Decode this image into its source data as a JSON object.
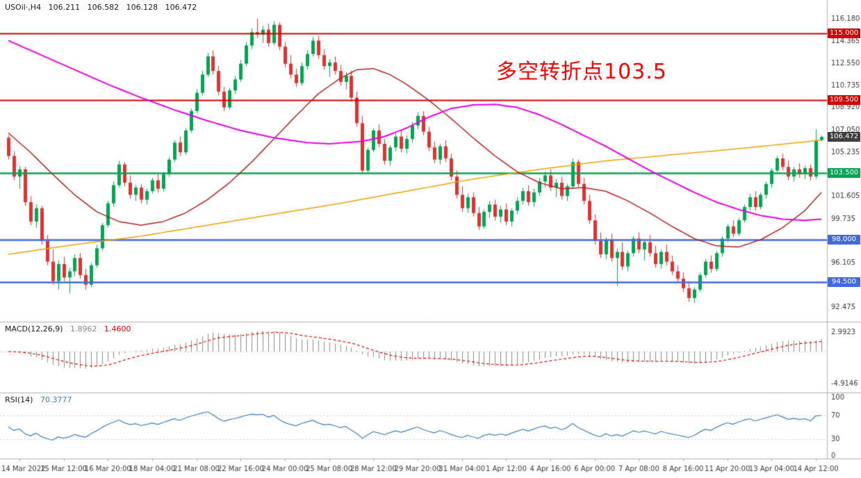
{
  "header": {
    "symbol_period": "USOil·,H4",
    "open": "106.211",
    "high": "106.582",
    "low": "106.128",
    "close": "106.472"
  },
  "annotation": {
    "text": "多空转折点103.5",
    "color": "#FF0000"
  },
  "indicators": {
    "macd": {
      "label": "MACD(12,26,9)",
      "main_value": "1.8962",
      "signal_value": "1.4600",
      "axis_max": "2.9923",
      "axis_min": "-4.9146"
    },
    "rsi": {
      "label": "RSI(14)",
      "value": "70.3777",
      "axis_labels": [
        "100",
        "70",
        "30",
        "0"
      ],
      "levels": [
        70,
        30
      ]
    }
  },
  "price_axis": {
    "labels": [
      "116.180",
      "114.365",
      "112.550",
      "110.735",
      "108.920",
      "107.050",
      "105.235",
      "101.605",
      "99.735",
      "96.105",
      "92.475"
    ]
  },
  "hlines": [
    {
      "price": 115.0,
      "label": "115.000",
      "color": "#D40000",
      "width": 2
    },
    {
      "price": 109.5,
      "label": "109.500",
      "color": "#D40000",
      "width": 2
    },
    {
      "price": 103.5,
      "label": "103.500",
      "color": "#00A651",
      "width": 2.5
    },
    {
      "price": 98.0,
      "label": "98.000",
      "color": "#4169E1",
      "width": 2.5
    },
    {
      "price": 94.5,
      "label": "94.500",
      "color": "#4169E1",
      "width": 2.5
    }
  ],
  "current_price": {
    "label": "106.472",
    "value": 106.472,
    "badge_color": "#3E3E3E"
  },
  "time_axis": {
    "ticks": [
      {
        "i": 2,
        "label": "14 Mar 2022"
      },
      {
        "i": 10,
        "label": "15 Mar 12:00"
      },
      {
        "i": 18,
        "label": "16 Mar 20:00"
      },
      {
        "i": 26,
        "label": "18 Mar 04:00"
      },
      {
        "i": 34,
        "label": "21 Mar 08:00"
      },
      {
        "i": 42,
        "label": "22 Mar 16:00"
      },
      {
        "i": 50,
        "label": "24 Mar 00:00"
      },
      {
        "i": 58,
        "label": "25 Mar 08:00"
      },
      {
        "i": 66,
        "label": "28 Mar 12:00"
      },
      {
        "i": 74,
        "label": "29 Mar 20:00"
      },
      {
        "i": 82,
        "label": "31 Mar 04:00"
      },
      {
        "i": 90,
        "label": "1 Apr 12:00"
      },
      {
        "i": 98,
        "label": "4 Apr 16:00"
      },
      {
        "i": 106,
        "label": "6 Apr 00:00"
      },
      {
        "i": 114,
        "label": "7 Apr 08:00"
      },
      {
        "i": 122,
        "label": "8 Apr 16:00"
      },
      {
        "i": 130,
        "label": "11 Apr 20:00"
      },
      {
        "i": 138,
        "label": "13 Apr 04:00"
      },
      {
        "i": 146,
        "label": "14 Apr 12:00"
      }
    ]
  },
  "colors": {
    "up": "#00A651",
    "down": "#E33030",
    "macd_bar": "#8A8A8A",
    "macd_signal": "#E00000",
    "rsi_line": "#3E7FBF",
    "pane_border": "#B0B0B0",
    "axis_text": "#3A3A3A",
    "level_dotted": "#CCCCCC"
  },
  "chart_data": {
    "type": "candlestick",
    "symbol": "USOil",
    "timeframe": "H4",
    "price_range": [
      92.0,
      117.4
    ],
    "candles": [
      [
        106.4,
        106.6,
        104.6,
        104.9
      ],
      [
        104.9,
        105.3,
        102.9,
        103.2
      ],
      [
        103.2,
        104.1,
        102.2,
        103.8
      ],
      [
        103.8,
        104.0,
        100.8,
        101.1
      ],
      [
        101.1,
        101.6,
        99.2,
        99.5
      ],
      [
        99.5,
        100.9,
        99.0,
        100.6
      ],
      [
        100.6,
        100.8,
        97.6,
        97.9
      ],
      [
        97.9,
        98.4,
        95.9,
        96.2
      ],
      [
        96.2,
        97.2,
        94.3,
        94.6
      ],
      [
        94.6,
        96.3,
        93.9,
        96.0
      ],
      [
        96.0,
        96.6,
        94.6,
        94.9
      ],
      [
        94.9,
        95.7,
        93.6,
        95.4
      ],
      [
        95.4,
        96.8,
        95.0,
        96.5
      ],
      [
        96.5,
        96.9,
        94.8,
        95.1
      ],
      [
        95.1,
        95.6,
        93.9,
        94.3
      ],
      [
        94.3,
        96.1,
        94.1,
        95.9
      ],
      [
        95.9,
        97.6,
        95.7,
        97.3
      ],
      [
        97.3,
        99.4,
        97.1,
        99.2
      ],
      [
        99.2,
        101.2,
        99.0,
        101.0
      ],
      [
        101.0,
        102.8,
        100.7,
        102.5
      ],
      [
        102.5,
        104.5,
        102.3,
        104.2
      ],
      [
        104.2,
        104.4,
        102.4,
        102.7
      ],
      [
        102.7,
        103.3,
        101.4,
        101.7
      ],
      [
        101.7,
        102.5,
        101.2,
        102.3
      ],
      [
        102.3,
        102.6,
        101.0,
        101.3
      ],
      [
        101.3,
        102.2,
        100.9,
        102.0
      ],
      [
        102.0,
        103.1,
        101.8,
        102.9
      ],
      [
        102.9,
        103.4,
        101.9,
        102.2
      ],
      [
        102.2,
        103.6,
        102.0,
        103.4
      ],
      [
        103.4,
        104.8,
        103.2,
        104.6
      ],
      [
        104.6,
        106.2,
        104.4,
        106.0
      ],
      [
        106.0,
        106.5,
        104.9,
        105.2
      ],
      [
        105.2,
        107.2,
        105.0,
        107.0
      ],
      [
        107.0,
        108.8,
        106.8,
        108.6
      ],
      [
        108.6,
        110.4,
        108.4,
        110.1
      ],
      [
        110.1,
        111.9,
        109.9,
        111.6
      ],
      [
        111.6,
        113.4,
        111.4,
        113.1
      ],
      [
        113.1,
        113.6,
        111.6,
        111.9
      ],
      [
        111.9,
        112.3,
        109.9,
        110.2
      ],
      [
        110.2,
        110.6,
        108.6,
        108.9
      ],
      [
        108.9,
        110.5,
        108.7,
        110.3
      ],
      [
        110.3,
        111.5,
        110.0,
        111.2
      ],
      [
        111.2,
        112.8,
        111.0,
        112.5
      ],
      [
        112.5,
        114.3,
        112.3,
        114.0
      ],
      [
        114.0,
        115.4,
        113.7,
        115.1
      ],
      [
        115.1,
        116.2,
        114.6,
        114.9
      ],
      [
        114.9,
        115.6,
        114.2,
        115.3
      ],
      [
        115.3,
        115.8,
        113.9,
        114.2
      ],
      [
        114.2,
        116.0,
        114.0,
        115.7
      ],
      [
        115.7,
        115.9,
        113.6,
        113.9
      ],
      [
        113.9,
        114.3,
        112.2,
        112.5
      ],
      [
        112.5,
        113.2,
        111.3,
        111.6
      ],
      [
        111.6,
        112.1,
        110.6,
        110.9
      ],
      [
        110.9,
        112.6,
        110.7,
        112.3
      ],
      [
        112.3,
        113.6,
        112.0,
        113.3
      ],
      [
        113.3,
        114.7,
        113.1,
        114.4
      ],
      [
        114.4,
        114.8,
        112.9,
        113.2
      ],
      [
        113.2,
        113.7,
        112.0,
        112.3
      ],
      [
        112.3,
        112.9,
        111.4,
        112.6
      ],
      [
        112.6,
        113.1,
        111.6,
        111.9
      ],
      [
        111.9,
        112.4,
        110.7,
        111.0
      ],
      [
        111.0,
        111.8,
        110.4,
        111.5
      ],
      [
        111.5,
        111.9,
        109.4,
        109.7
      ],
      [
        109.7,
        110.2,
        107.3,
        107.6
      ],
      [
        107.6,
        108.2,
        103.4,
        103.7
      ],
      [
        103.7,
        105.6,
        103.5,
        105.4
      ],
      [
        105.4,
        107.2,
        105.2,
        107.0
      ],
      [
        107.0,
        107.5,
        105.6,
        105.9
      ],
      [
        105.9,
        106.3,
        104.2,
        104.5
      ],
      [
        104.5,
        105.8,
        104.1,
        105.6
      ],
      [
        105.6,
        106.8,
        105.3,
        106.5
      ],
      [
        106.5,
        107.0,
        105.2,
        105.5
      ],
      [
        105.5,
        106.6,
        105.1,
        106.3
      ],
      [
        106.3,
        107.7,
        106.0,
        107.4
      ],
      [
        107.4,
        108.5,
        107.1,
        108.2
      ],
      [
        108.2,
        108.6,
        106.6,
        106.9
      ],
      [
        106.9,
        107.3,
        105.3,
        105.6
      ],
      [
        105.6,
        106.1,
        104.3,
        104.6
      ],
      [
        104.6,
        105.9,
        104.2,
        105.7
      ],
      [
        105.7,
        106.2,
        104.4,
        104.7
      ],
      [
        104.7,
        105.1,
        102.9,
        103.2
      ],
      [
        103.2,
        103.7,
        101.4,
        101.7
      ],
      [
        101.7,
        102.4,
        100.3,
        100.6
      ],
      [
        100.6,
        101.8,
        100.2,
        101.5
      ],
      [
        101.5,
        101.9,
        99.9,
        100.2
      ],
      [
        100.2,
        100.7,
        98.8,
        99.1
      ],
      [
        99.1,
        100.5,
        98.9,
        100.3
      ],
      [
        100.3,
        101.2,
        99.8,
        100.9
      ],
      [
        100.9,
        101.3,
        99.6,
        99.9
      ],
      [
        99.9,
        100.8,
        99.4,
        100.5
      ],
      [
        100.5,
        101.0,
        99.2,
        99.5
      ],
      [
        99.5,
        100.6,
        99.1,
        100.4
      ],
      [
        100.4,
        101.5,
        100.1,
        101.2
      ],
      [
        101.2,
        102.3,
        100.9,
        102.0
      ],
      [
        102.0,
        102.5,
        100.8,
        101.1
      ],
      [
        101.1,
        102.2,
        100.7,
        101.9
      ],
      [
        101.9,
        103.1,
        101.6,
        102.8
      ],
      [
        102.8,
        103.6,
        102.3,
        103.3
      ],
      [
        103.3,
        103.8,
        102.0,
        102.3
      ],
      [
        102.3,
        103.0,
        101.5,
        102.7
      ],
      [
        102.7,
        103.2,
        101.3,
        101.6
      ],
      [
        101.6,
        102.6,
        101.2,
        102.4
      ],
      [
        102.4,
        104.7,
        102.2,
        104.4
      ],
      [
        104.4,
        104.6,
        102.3,
        102.6
      ],
      [
        102.6,
        103.1,
        100.9,
        101.2
      ],
      [
        101.2,
        101.7,
        99.3,
        99.6
      ],
      [
        99.6,
        100.1,
        97.6,
        97.9
      ],
      [
        97.9,
        98.6,
        96.5,
        96.8
      ],
      [
        96.8,
        98.2,
        96.4,
        98.0
      ],
      [
        98.0,
        98.5,
        96.2,
        96.5
      ],
      [
        96.5,
        97.3,
        94.2,
        97.0
      ],
      [
        97.0,
        97.8,
        95.5,
        95.8
      ],
      [
        95.8,
        97.1,
        95.4,
        96.9
      ],
      [
        96.9,
        98.3,
        96.6,
        98.1
      ],
      [
        98.1,
        98.6,
        96.9,
        97.2
      ],
      [
        97.2,
        98.0,
        96.3,
        97.8
      ],
      [
        97.8,
        98.4,
        96.6,
        96.9
      ],
      [
        96.9,
        97.5,
        95.7,
        96.0
      ],
      [
        96.0,
        97.2,
        95.6,
        97.0
      ],
      [
        97.0,
        97.6,
        95.9,
        96.2
      ],
      [
        96.2,
        96.7,
        95.1,
        95.4
      ],
      [
        95.4,
        95.9,
        94.5,
        94.8
      ],
      [
        94.8,
        95.3,
        93.7,
        94.0
      ],
      [
        94.0,
        94.6,
        92.9,
        93.2
      ],
      [
        93.2,
        94.1,
        92.8,
        93.9
      ],
      [
        93.9,
        95.3,
        93.7,
        95.1
      ],
      [
        95.1,
        96.4,
        94.9,
        96.2
      ],
      [
        96.2,
        96.7,
        95.3,
        95.6
      ],
      [
        95.6,
        97.1,
        95.4,
        96.9
      ],
      [
        96.9,
        98.3,
        96.6,
        98.1
      ],
      [
        98.1,
        99.3,
        97.8,
        99.1
      ],
      [
        99.1,
        99.6,
        98.2,
        98.5
      ],
      [
        98.5,
        99.8,
        98.3,
        99.6
      ],
      [
        99.6,
        100.9,
        99.4,
        100.7
      ],
      [
        100.7,
        101.8,
        100.4,
        101.5
      ],
      [
        101.5,
        102.0,
        100.4,
        100.7
      ],
      [
        100.7,
        101.9,
        100.5,
        101.7
      ],
      [
        101.7,
        102.8,
        101.4,
        102.6
      ],
      [
        102.6,
        103.9,
        102.3,
        103.7
      ],
      [
        103.7,
        104.9,
        103.4,
        104.7
      ],
      [
        104.7,
        105.1,
        103.7,
        104.0
      ],
      [
        104.0,
        104.5,
        102.9,
        103.2
      ],
      [
        103.2,
        104.0,
        102.8,
        103.8
      ],
      [
        103.8,
        104.3,
        103.1,
        103.4
      ],
      [
        103.4,
        104.1,
        103.0,
        103.9
      ],
      [
        103.9,
        104.2,
        102.9,
        103.2
      ],
      [
        103.2,
        107.1,
        103.0,
        106.2
      ],
      [
        106.211,
        106.582,
        106.128,
        106.472
      ]
    ],
    "ma_lines": [
      {
        "name": "ma-long-orange",
        "color": "#F2A100",
        "width": 1.5,
        "points": [
          [
            0,
            96.8
          ],
          [
            12,
            97.6
          ],
          [
            24,
            98.3
          ],
          [
            36,
            99.2
          ],
          [
            48,
            100.1
          ],
          [
            60,
            101.0
          ],
          [
            72,
            102.0
          ],
          [
            84,
            103.0
          ],
          [
            96,
            103.8
          ],
          [
            108,
            104.5
          ],
          [
            120,
            105.0
          ],
          [
            132,
            105.5
          ],
          [
            147,
            106.2
          ]
        ]
      },
      {
        "name": "ma-medium-red",
        "color": "#B22222",
        "width": 1.5,
        "points": [
          [
            0,
            106.8
          ],
          [
            4,
            105.2
          ],
          [
            8,
            103.4
          ],
          [
            12,
            101.7
          ],
          [
            16,
            100.3
          ],
          [
            20,
            99.5
          ],
          [
            24,
            99.2
          ],
          [
            28,
            99.5
          ],
          [
            32,
            100.2
          ],
          [
            36,
            101.3
          ],
          [
            40,
            102.7
          ],
          [
            44,
            104.4
          ],
          [
            48,
            106.3
          ],
          [
            52,
            108.2
          ],
          [
            56,
            110.0
          ],
          [
            60,
            111.3
          ],
          [
            63,
            112.0
          ],
          [
            66,
            112.1
          ],
          [
            69,
            111.6
          ],
          [
            72,
            110.8
          ],
          [
            76,
            109.5
          ],
          [
            80,
            108.0
          ],
          [
            84,
            106.4
          ],
          [
            88,
            104.9
          ],
          [
            92,
            103.6
          ],
          [
            96,
            102.7
          ],
          [
            100,
            102.2
          ],
          [
            104,
            102.3
          ],
          [
            108,
            102.0
          ],
          [
            112,
            101.2
          ],
          [
            116,
            100.2
          ],
          [
            120,
            99.1
          ],
          [
            124,
            98.1
          ],
          [
            128,
            97.5
          ],
          [
            132,
            97.4
          ],
          [
            136,
            98.0
          ],
          [
            140,
            99.0
          ],
          [
            144,
            100.4
          ],
          [
            147,
            101.9
          ]
        ]
      },
      {
        "name": "ma-slow-magenta",
        "color": "#E800E8",
        "width": 2,
        "points": [
          [
            0,
            114.4
          ],
          [
            6,
            113.2
          ],
          [
            12,
            112.0
          ],
          [
            18,
            110.8
          ],
          [
            24,
            109.7
          ],
          [
            30,
            108.7
          ],
          [
            36,
            107.8
          ],
          [
            42,
            107.0
          ],
          [
            48,
            106.4
          ],
          [
            54,
            106.0
          ],
          [
            58,
            105.9
          ],
          [
            64,
            106.1
          ],
          [
            68,
            106.5
          ],
          [
            72,
            107.2
          ],
          [
            76,
            108.1
          ],
          [
            80,
            108.8
          ],
          [
            84,
            109.1
          ],
          [
            88,
            109.15
          ],
          [
            92,
            108.9
          ],
          [
            96,
            108.3
          ],
          [
            100,
            107.5
          ],
          [
            104,
            106.6
          ],
          [
            108,
            105.7
          ],
          [
            112,
            104.7
          ],
          [
            116,
            103.7
          ],
          [
            120,
            102.8
          ],
          [
            124,
            101.9
          ],
          [
            128,
            101.1
          ],
          [
            132,
            100.5
          ],
          [
            136,
            100.0
          ],
          [
            140,
            99.7
          ],
          [
            144,
            99.6
          ],
          [
            147,
            99.7
          ]
        ]
      }
    ],
    "macd_params": [
      12,
      26,
      9
    ],
    "rsi_period": 14
  }
}
